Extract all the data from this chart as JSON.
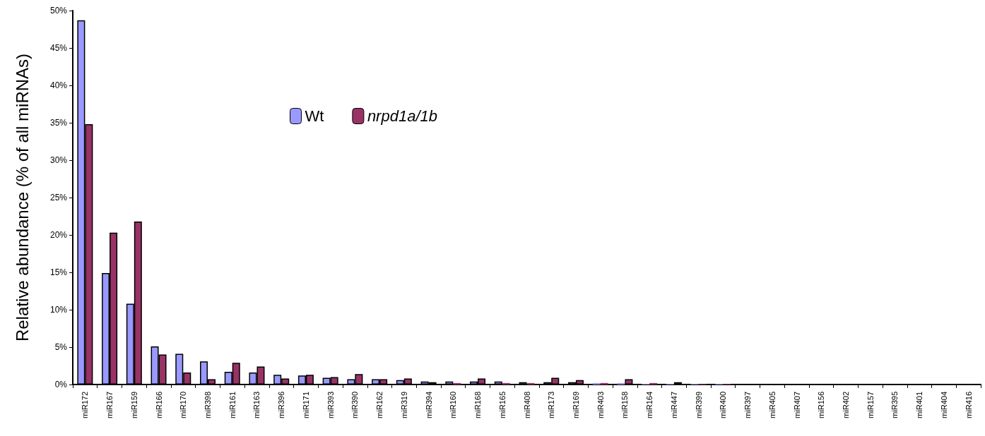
{
  "chart_data": {
    "type": "bar",
    "ylabel": "Relative abundance (% of all miRNAs)",
    "categories": [
      "miR172",
      "miR167",
      "miR159",
      "miR166",
      "miR170",
      "miR398",
      "miR161",
      "miR163",
      "miR396",
      "miR171",
      "miR393",
      "miR390",
      "miR162",
      "miR319",
      "miR394",
      "miR160",
      "miR168",
      "miR165",
      "miR408",
      "miR173",
      "miR169",
      "miR403",
      "miR158",
      "miR164",
      "miR447",
      "miR399",
      "miR400",
      "miR397",
      "miR405",
      "miR407",
      "miR156",
      "miR402",
      "miR157",
      "miR395",
      "miR401",
      "miR404",
      "miR416"
    ],
    "series": [
      {
        "name": "Wt",
        "color": "#9999ff",
        "values": [
          48.7,
          14.9,
          10.8,
          5.1,
          4.1,
          3.1,
          1.7,
          1.6,
          1.3,
          1.2,
          0.9,
          0.7,
          0.7,
          0.6,
          0.4,
          0.4,
          0.4,
          0.4,
          0.3,
          0.3,
          0.3,
          0.2,
          0.2,
          0.1,
          0.1,
          0.1,
          0.1,
          0,
          0,
          0,
          0,
          0,
          0,
          0,
          0,
          0,
          0
        ]
      },
      {
        "name": "nrpd1a/1b",
        "color": "#993366",
        "values": [
          34.8,
          20.3,
          21.8,
          4.0,
          1.6,
          0.7,
          2.9,
          2.4,
          0.8,
          1.3,
          1.0,
          1.4,
          0.7,
          0.8,
          0.3,
          0.2,
          0.8,
          0.2,
          0.2,
          0.9,
          0.6,
          0.2,
          0.7,
          0.2,
          0.3,
          0.1,
          0.1,
          0,
          0,
          0,
          0,
          0,
          0,
          0,
          0,
          0,
          0
        ]
      }
    ],
    "ylim": [
      0,
      50
    ],
    "yticks": [
      {
        "value": 0,
        "label": "0%"
      },
      {
        "value": 5,
        "label": "5%"
      },
      {
        "value": 10,
        "label": "10%"
      },
      {
        "value": 15,
        "label": "15%"
      },
      {
        "value": 20,
        "label": "20%"
      },
      {
        "value": 25,
        "label": "25%"
      },
      {
        "value": 30,
        "label": "30%"
      },
      {
        "value": 35,
        "label": "35%"
      },
      {
        "value": 40,
        "label": "40%"
      },
      {
        "value": 45,
        "label": "45%"
      },
      {
        "value": 50,
        "label": "50%"
      }
    ],
    "grid": false,
    "legend": "top"
  }
}
